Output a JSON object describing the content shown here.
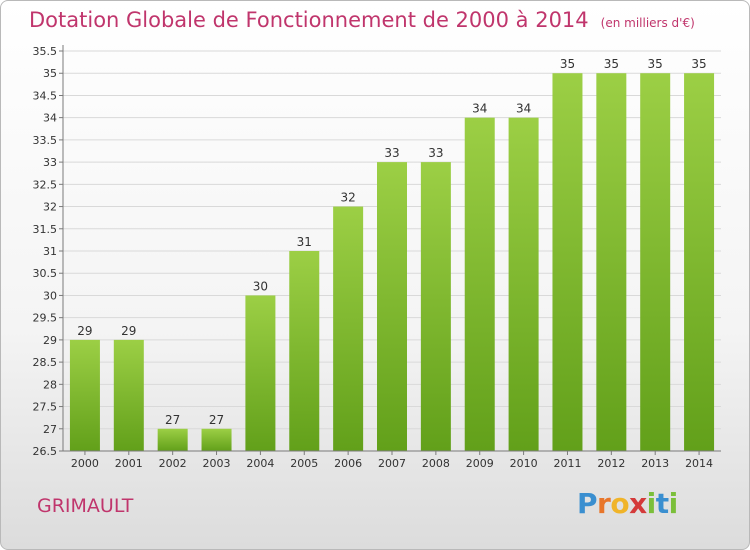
{
  "title": "Dotation Globale de Fonctionnement de 2000 à 2014",
  "unit_note": "(en milliers d'€)",
  "commune": "GRIMAULT",
  "logo": {
    "letters": [
      "P",
      "r",
      "o",
      "x",
      "i",
      "t",
      "i"
    ],
    "colors": [
      "#3a8fd0",
      "#e8762b",
      "#f0b429",
      "#d43a3a",
      "#7bbf3a",
      "#3a8fd0",
      "#7bbf3a"
    ]
  },
  "colors": {
    "bar_top": "#9ccf45",
    "bar_bottom": "#62a01a",
    "grid": "#d9d9d9",
    "axis": "#7a7a7a",
    "text": "#333333",
    "accent": "#c0356c"
  },
  "chart_data": {
    "type": "bar",
    "categories": [
      "2000",
      "2001",
      "2002",
      "2003",
      "2004",
      "2005",
      "2006",
      "2007",
      "2008",
      "2009",
      "2010",
      "2011",
      "2012",
      "2013",
      "2014"
    ],
    "values": [
      29,
      29,
      27,
      27,
      30,
      31,
      32,
      33,
      33,
      34,
      34,
      35,
      35,
      35,
      35
    ],
    "data_labels": [
      "29",
      "29",
      "27",
      "27",
      "30",
      "31",
      "32",
      "33",
      "33",
      "34",
      "34",
      "35",
      "35",
      "35",
      "35"
    ],
    "ylim": [
      26.5,
      35.5
    ],
    "yticks": [
      "26.5",
      "27",
      "27.5",
      "28",
      "28.5",
      "29",
      "29.5",
      "30",
      "30.5",
      "31",
      "31.5",
      "32",
      "32.5",
      "33",
      "33.5",
      "34",
      "34.5",
      "35",
      "35.5"
    ],
    "grid": true,
    "legend": "none"
  }
}
